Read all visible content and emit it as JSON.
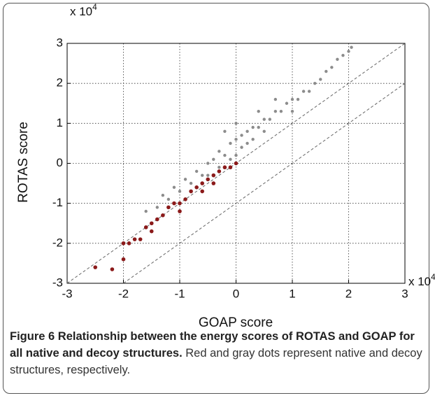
{
  "chart_data": {
    "type": "scatter",
    "x_label": "GOAP score",
    "y_label": "ROTAS score",
    "x_multiplier": {
      "base": "x 10",
      "exponent": "4"
    },
    "y_multiplier": {
      "base": "x 10",
      "exponent": "4"
    },
    "xlim": [
      -3,
      3
    ],
    "ylim": [
      -3,
      3
    ],
    "xticks": [
      -3,
      -2,
      -1,
      0,
      1,
      2,
      3
    ],
    "yticks": [
      -3,
      -2,
      -1,
      0,
      1,
      2,
      3
    ],
    "grid": true,
    "reference_lines": [
      {
        "slope": 1,
        "intercept": 0
      },
      {
        "slope": 1,
        "intercept": -1
      }
    ],
    "series": [
      {
        "color": "#8c8c8c",
        "x": [
          -1.6,
          -1.4,
          -1.3,
          -1.2,
          -1.1,
          -1.0,
          -0.9,
          -0.8,
          -0.7,
          -0.6,
          -0.5,
          -0.5,
          -0.4,
          -0.3,
          -0.3,
          -0.2,
          -0.1,
          -0.1,
          0,
          0,
          0.1,
          0.1,
          0.2,
          0.2,
          0.3,
          0.3,
          0.4,
          0.5,
          0.5,
          0.6,
          0.7,
          0.8,
          0.9,
          1.0,
          1.1,
          1.2,
          1.3,
          1.4,
          1.5,
          1.6,
          1.7,
          1.8,
          1.9,
          2.0,
          2.05,
          -0.2,
          0.0,
          0.4,
          0.7,
          1.0
        ],
        "values": [
          -1.2,
          -1.1,
          -0.8,
          -0.9,
          -0.6,
          -0.7,
          -0.4,
          -0.5,
          -0.2,
          -0.3,
          0.0,
          -0.3,
          0.1,
          0.3,
          -0.1,
          0.2,
          0.5,
          0.1,
          0.6,
          0.2,
          0.7,
          0.4,
          0.8,
          0.5,
          0.9,
          0.6,
          0.9,
          1.1,
          0.8,
          1.1,
          1.3,
          1.3,
          1.5,
          1.6,
          1.6,
          1.8,
          1.8,
          2.0,
          2.1,
          2.3,
          2.4,
          2.6,
          2.7,
          2.8,
          2.9,
          0.8,
          1.0,
          1.3,
          1.6,
          1.3
        ]
      },
      {
        "color": "#8b1a1a",
        "x": [
          -2.5,
          -2.2,
          -2.0,
          -2.0,
          -1.9,
          -1.8,
          -1.7,
          -1.6,
          -1.5,
          -1.4,
          -1.3,
          -1.2,
          -1.1,
          -1.0,
          -0.9,
          -0.8,
          -0.7,
          -0.6,
          -0.5,
          -0.4,
          -0.3,
          -0.2,
          -0.1,
          0.0,
          -0.4,
          -0.6,
          -1.0,
          -1.5
        ],
        "values": [
          -2.6,
          -2.65,
          -2.0,
          -2.4,
          -2.0,
          -1.9,
          -1.9,
          -1.6,
          -1.5,
          -1.4,
          -1.3,
          -1.1,
          -1.0,
          -1.0,
          -0.9,
          -0.7,
          -0.6,
          -0.5,
          -0.4,
          -0.3,
          -0.2,
          -0.1,
          -0.1,
          0.0,
          -0.5,
          -0.7,
          -1.2,
          -1.7
        ]
      }
    ]
  },
  "caption": {
    "label": "Figure 6",
    "title": "Relationship between the energy scores of ROTAS and GOAP for all native and decoy structures.",
    "text": "Red and gray dots represent native and decoy structures, respectively."
  }
}
